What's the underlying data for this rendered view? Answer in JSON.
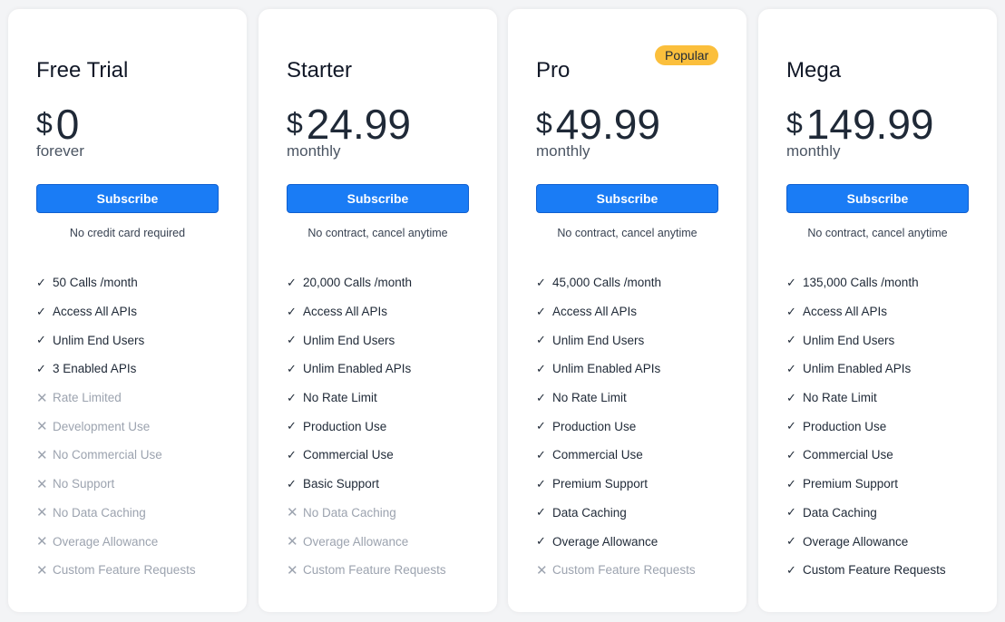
{
  "plans": [
    {
      "name": "Free Trial",
      "currency": "$",
      "price": "0",
      "period": "forever",
      "button": "Subscribe",
      "note": "No credit card required",
      "features": [
        [
          "50 Calls /month",
          true
        ],
        [
          "Access All APIs",
          true
        ],
        [
          "Unlim End Users",
          true
        ],
        [
          "3 Enabled APIs",
          true
        ],
        [
          "Rate Limited",
          false
        ],
        [
          "Development Use",
          false
        ],
        [
          "No Commercial Use",
          false
        ],
        [
          "No Support",
          false
        ],
        [
          "No Data Caching",
          false
        ],
        [
          "Overage Allowance",
          false
        ],
        [
          "Custom Feature Requests",
          false
        ]
      ]
    },
    {
      "name": "Starter",
      "currency": "$",
      "price": "24.99",
      "period": "monthly",
      "button": "Subscribe",
      "note": "No contract, cancel anytime",
      "features": [
        [
          "20,000 Calls /month",
          true
        ],
        [
          "Access All APIs",
          true
        ],
        [
          "Unlim End Users",
          true
        ],
        [
          "Unlim Enabled APIs",
          true
        ],
        [
          "No Rate Limit",
          true
        ],
        [
          "Production Use",
          true
        ],
        [
          "Commercial Use",
          true
        ],
        [
          "Basic Support",
          true
        ],
        [
          "No Data Caching",
          false
        ],
        [
          "Overage Allowance",
          false
        ],
        [
          "Custom Feature Requests",
          false
        ]
      ]
    },
    {
      "name": "Pro",
      "badge": "Popular",
      "currency": "$",
      "price": "49.99",
      "period": "monthly",
      "button": "Subscribe",
      "note": "No contract, cancel anytime",
      "features": [
        [
          "45,000 Calls /month",
          true
        ],
        [
          "Access All APIs",
          true
        ],
        [
          "Unlim End Users",
          true
        ],
        [
          "Unlim Enabled APIs",
          true
        ],
        [
          "No Rate Limit",
          true
        ],
        [
          "Production Use",
          true
        ],
        [
          "Commercial Use",
          true
        ],
        [
          "Premium Support",
          true
        ],
        [
          "Data Caching",
          true
        ],
        [
          "Overage Allowance",
          true
        ],
        [
          "Custom Feature Requests",
          false
        ]
      ]
    },
    {
      "name": "Mega",
      "currency": "$",
      "price": "149.99",
      "period": "monthly",
      "button": "Subscribe",
      "note": "No contract, cancel anytime",
      "features": [
        [
          "135,000 Calls /month",
          true
        ],
        [
          "Access All APIs",
          true
        ],
        [
          "Unlim End Users",
          true
        ],
        [
          "Unlim Enabled APIs",
          true
        ],
        [
          "No Rate Limit",
          true
        ],
        [
          "Production Use",
          true
        ],
        [
          "Commercial Use",
          true
        ],
        [
          "Premium Support",
          true
        ],
        [
          "Data Caching",
          true
        ],
        [
          "Overage Allowance",
          true
        ],
        [
          "Custom Feature Requests",
          true
        ]
      ]
    }
  ],
  "icons": {
    "included": "check-icon",
    "excluded": "x-icon"
  },
  "colors": {
    "button": "#1a7cf5",
    "badge": "#fbbf3c"
  }
}
